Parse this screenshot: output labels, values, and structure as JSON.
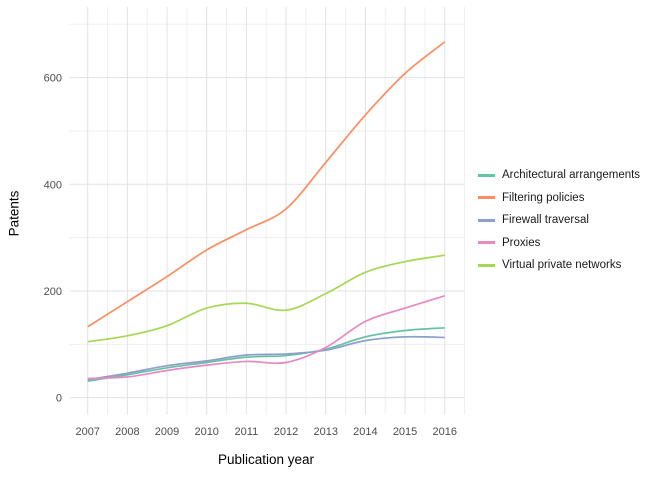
{
  "chart_data": {
    "type": "line",
    "title": "",
    "xlabel": "Publication year",
    "ylabel": "Patents",
    "x": [
      2007,
      2008,
      2009,
      2010,
      2011,
      2012,
      2013,
      2014,
      2015,
      2016
    ],
    "x_tick_labels": [
      "2007",
      "2008",
      "2009",
      "2010",
      "2011",
      "2012",
      "2013",
      "2014",
      "2015",
      "2016"
    ],
    "y_ticks": [
      0,
      200,
      400,
      600
    ],
    "y_minor_ticks": [
      100,
      300,
      500,
      700
    ],
    "ylim": [
      0,
      700
    ],
    "grid": true,
    "legend_position": "right",
    "series": [
      {
        "name": "Architectural arrangements",
        "color": "#66c2a5",
        "values": [
          31,
          43,
          56,
          66,
          76,
          79,
          91,
          114,
          126,
          131
        ]
      },
      {
        "name": "Filtering policies",
        "color": "#fc8d62",
        "values": [
          133,
          180,
          227,
          277,
          315,
          354,
          441,
          530,
          608,
          667
        ]
      },
      {
        "name": "Firewall traversal",
        "color": "#8da0cb",
        "values": [
          34,
          46,
          60,
          69,
          80,
          82,
          89,
          107,
          114,
          113
        ]
      },
      {
        "name": "Proxies",
        "color": "#e78ac3",
        "values": [
          36,
          39,
          51,
          61,
          68,
          66,
          94,
          143,
          168,
          191
        ]
      },
      {
        "name": "Virtual private networks",
        "color": "#a6d854",
        "values": [
          105,
          116,
          135,
          168,
          177,
          164,
          195,
          235,
          255,
          267
        ]
      }
    ],
    "colors": {
      "grid_major": "#e2e2e2",
      "grid_minor": "#efefef",
      "tick_label": "#4d4d4d",
      "axis_title": "#000000",
      "background": "#ffffff"
    }
  }
}
